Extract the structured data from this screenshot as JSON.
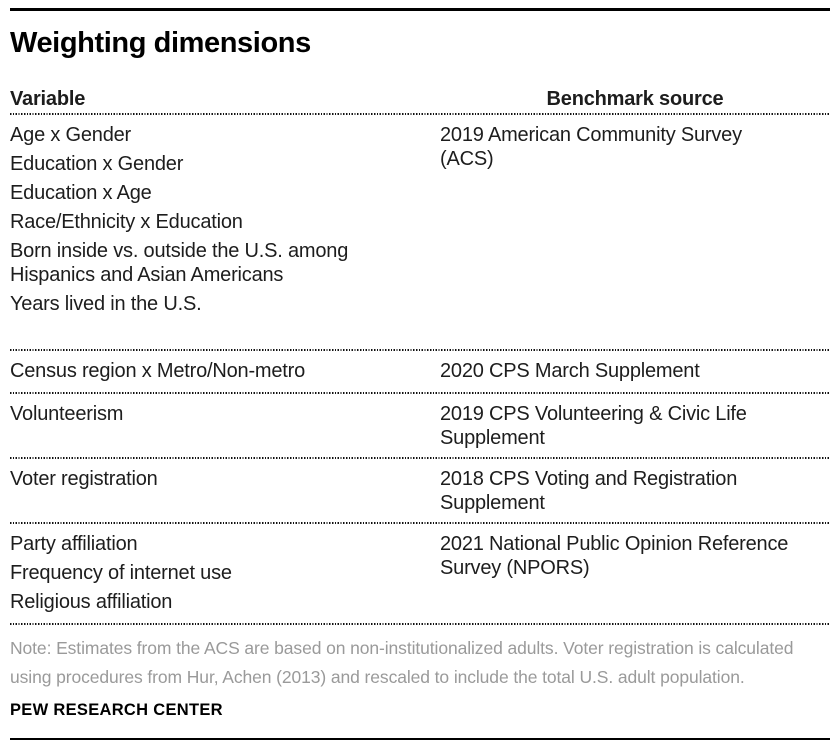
{
  "title": "Weighting dimensions",
  "table": {
    "columns": [
      "Variable",
      "Benchmark source"
    ],
    "rows": [
      {
        "variables": [
          "Age x Gender",
          "Education x Gender",
          "Education x Age",
          "Race/Ethnicity x Education",
          "Born inside vs. outside the U.S. among Hispanics and Asian Americans",
          "Years lived in the U.S."
        ],
        "benchmark": "2019 American Community Survey (ACS)"
      },
      {
        "variables": [
          "Census region x Metro/Non-metro"
        ],
        "benchmark": "2020 CPS March Supplement"
      },
      {
        "variables": [
          "Volunteerism"
        ],
        "benchmark": "2019 CPS Volunteering & Civic Life Supplement"
      },
      {
        "variables": [
          "Voter registration"
        ],
        "benchmark": "2018 CPS Voting and Registration Supplement"
      },
      {
        "variables": [
          "Party affiliation",
          "Frequency of internet use",
          "Religious affiliation"
        ],
        "benchmark": "2021 National Public Opinion Reference Survey (NPORS)"
      }
    ]
  },
  "note": "Note: Estimates from the ACS are based on non-institutionalized adults. Voter registration is calculated using procedures from Hur, Achen (2013) and rescaled to include the total U.S. adult population.",
  "footer": "PEW RESEARCH CENTER",
  "colors": {
    "text": "#1d1d1d",
    "note_text": "#9a9a9a",
    "rule": "#000000"
  }
}
